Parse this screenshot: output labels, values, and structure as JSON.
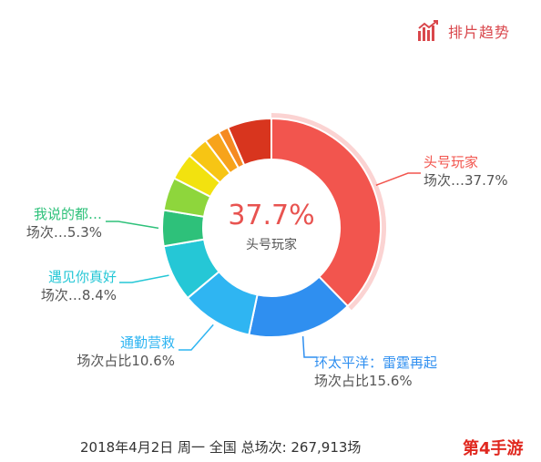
{
  "logo": {
    "text": "排片趋势",
    "color": "#d9474c"
  },
  "chart_data": {
    "type": "pie",
    "donut": true,
    "center": {
      "value": "37.7%",
      "label": "头号玩家"
    },
    "slices": [
      {
        "name": "头号玩家",
        "label_name": "头号玩家",
        "label_sub": "场次…37.7%",
        "value": 37.7,
        "color": "#f2554e"
      },
      {
        "name": "环太平洋：雷霆再起",
        "label_name": "环太平洋：雷霆再起",
        "label_sub": "场次占比15.6%",
        "value": 15.6,
        "color": "#2f8ff0"
      },
      {
        "name": "通勤营救",
        "label_name": "通勤营救",
        "label_sub": "场次占比10.6%",
        "value": 10.6,
        "color": "#2fb5f2"
      },
      {
        "name": "遇见你真好",
        "label_name": "遇见你真好",
        "label_sub": "场次…8.4%",
        "value": 8.4,
        "color": "#25c7d6"
      },
      {
        "name": "我说的都…",
        "label_name": "我说的都…",
        "label_sub": "场次…5.3%",
        "value": 5.3,
        "color": "#2ec17a"
      },
      {
        "name": "slice-6",
        "value": 4.9,
        "color": "#8ed63c"
      },
      {
        "name": "slice-7",
        "value": 4.0,
        "color": "#f2e20f"
      },
      {
        "name": "slice-8",
        "value": 3.2,
        "color": "#f7c514"
      },
      {
        "name": "slice-9",
        "value": 2.3,
        "color": "#f7a31b"
      },
      {
        "name": "slice-10",
        "value": 1.5,
        "color": "#f58a22"
      },
      {
        "name": "slice-11",
        "value": 6.5,
        "color": "#d8351e"
      }
    ]
  },
  "footer": "2018年4月2日 周一 全国 总场次: 267,913场",
  "watermark": "第4手游"
}
